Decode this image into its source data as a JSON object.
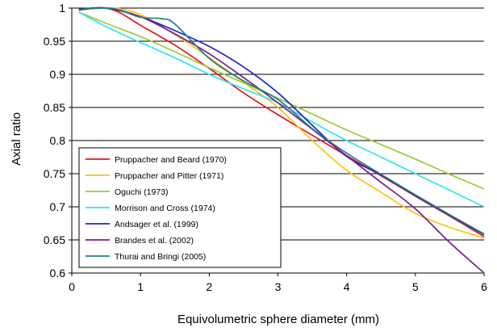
{
  "chart_data": {
    "type": "line",
    "title": "",
    "xlabel": "Equivolumetric sphere diameter (mm)",
    "ylabel": "Axial ratio",
    "xlim": [
      0,
      6
    ],
    "ylim": [
      0.6,
      1
    ],
    "xticks": [
      0,
      1,
      2,
      3,
      4,
      5,
      6
    ],
    "yticks": [
      0.6,
      0.65,
      0.7,
      0.75,
      0.8,
      0.85,
      0.9,
      0.95,
      1
    ],
    "ytick_labels": [
      "0.6",
      "0.65",
      "0.7",
      "0.75",
      "0.8",
      "0.85",
      "0.9",
      "0.95",
      "1"
    ],
    "grid": "horizontal",
    "legend_position": "lower-left",
    "series": [
      {
        "name": "Pruppacher and Beard (1970)",
        "color": "#e8141c",
        "x": [
          0.1,
          0.3,
          0.5,
          0.7,
          1.0,
          1.5,
          2.0,
          2.5,
          3.0,
          3.5,
          4.0,
          4.5,
          5.0,
          5.5,
          6.0
        ],
        "y": [
          0.997,
          1.0,
          1.0,
          0.993,
          0.974,
          0.944,
          0.909,
          0.872,
          0.839,
          0.808,
          0.777,
          0.747,
          0.716,
          0.686,
          0.655
        ]
      },
      {
        "name": "Pruppacher and Pitter (1971)",
        "color": "#ffc20e",
        "x": [
          0.1,
          0.3,
          0.5,
          0.7,
          1.0,
          1.5,
          2.0,
          2.5,
          3.0,
          3.5,
          4.0,
          4.5,
          5.0,
          5.5,
          6.0
        ],
        "y": [
          0.997,
          0.999,
          1.0,
          0.999,
          0.99,
          0.96,
          0.925,
          0.888,
          0.85,
          0.8,
          0.755,
          0.722,
          0.69,
          0.669,
          0.653
        ]
      },
      {
        "name": "Oguchi (1973)",
        "color": "#99cc33",
        "x": [
          0.1,
          0.5,
          1.0,
          1.5,
          2.0,
          2.5,
          3.0,
          3.5,
          4.0,
          4.5,
          5.0,
          5.5,
          6.0
        ],
        "y": [
          0.994,
          0.977,
          0.957,
          0.934,
          0.91,
          0.887,
          0.864,
          0.84,
          0.816,
          0.794,
          0.772,
          0.749,
          0.727
        ]
      },
      {
        "name": "Morrison and Cross (1974)",
        "color": "#2ee5f0",
        "x": [
          0.1,
          0.5,
          1.0,
          1.5,
          2.0,
          2.5,
          3.0,
          3.5,
          4.0,
          4.5,
          5.0,
          5.5,
          6.0
        ],
        "y": [
          0.994,
          0.972,
          0.948,
          0.925,
          0.9,
          0.878,
          0.857,
          0.828,
          0.8,
          0.775,
          0.75,
          0.725,
          0.7
        ]
      },
      {
        "name": "Andsager et al. (1999)",
        "color": "#1f25c8",
        "x": [
          0.1,
          0.5,
          1.0,
          1.5,
          2.0,
          2.5,
          3.0,
          3.5,
          4.0,
          4.5,
          5.0,
          5.5,
          6.0
        ],
        "y": [
          0.998,
          1.0,
          0.987,
          0.966,
          0.942,
          0.911,
          0.872,
          0.823,
          0.776,
          0.748,
          0.717,
          0.687,
          0.658
        ]
      },
      {
        "name": "Brandes et al. (2002)",
        "color": "#7a1a8f",
        "x": [
          0.1,
          0.5,
          1.0,
          1.5,
          2.0,
          2.5,
          3.0,
          3.5,
          4.0,
          4.5,
          5.0,
          5.5,
          6.0
        ],
        "y": [
          0.997,
          1.0,
          0.987,
          0.961,
          0.931,
          0.895,
          0.857,
          0.817,
          0.777,
          0.737,
          0.697,
          0.646,
          0.6
        ]
      },
      {
        "name": "Thurai and Bringi (2005)",
        "color": "#1f8080",
        "x": [
          0.1,
          0.5,
          0.7,
          1.0,
          1.3,
          1.5,
          2.0,
          2.5,
          3.0,
          3.5,
          4.0,
          4.5,
          5.0,
          5.5,
          6.0
        ],
        "y": [
          0.998,
          1.0,
          0.997,
          0.986,
          0.984,
          0.976,
          0.924,
          0.89,
          0.862,
          0.818,
          0.781,
          0.749,
          0.718,
          0.688,
          0.659
        ]
      }
    ]
  }
}
